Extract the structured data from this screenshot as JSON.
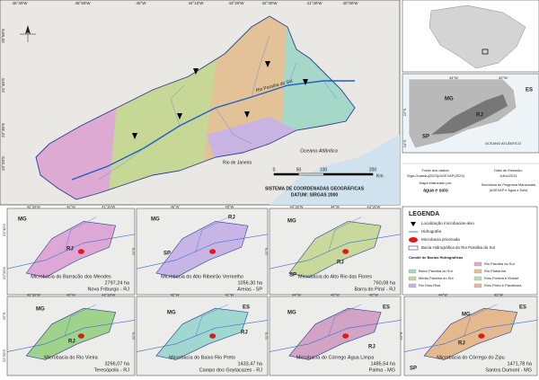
{
  "main_map": {
    "top_coords": [
      "46°40'W",
      "45°50'W",
      "45°W",
      "44°10'W",
      "43°20'W",
      "42°30'W",
      "41°40'W",
      "40°50'W"
    ],
    "left_coords": [
      "20°50'S",
      "21°40'S",
      "22°30'S",
      "23°20'S"
    ],
    "ocean": "Oceano Atlântico",
    "city": "Rio de Janeiro",
    "river": "Rio Paraíba do Sul",
    "scale": [
      0,
      50,
      100,
      200
    ],
    "scale_unit": "Km",
    "crs": "SISTEMA DE COORDENADAS GEOGRÁFICAS",
    "datum": "DATUM: SIRGAS 2000"
  },
  "credits": {
    "source": "Fonte dos dados:",
    "source_detail": "Siga-Guandu(2023)/AGEVAP(2023)",
    "author": "Mapa elaborado por:",
    "author_org": "água e solo",
    "date_label": "Data de Emissão:",
    "date": "Julho/2021",
    "program": "Secretaria do Programa Mananciais",
    "program_detail": "(AGEVAP e Água e Solo)"
  },
  "inset": {
    "states": [
      "MG",
      "ES",
      "RJ",
      "SP"
    ],
    "ocean": "OCEANO ATLÂNTICO",
    "x_coords": [
      "44°W",
      "42°W"
    ],
    "y_coords": [
      "22°S",
      "24°S"
    ]
  },
  "panels": [
    {
      "title": "Microbacia do Barracão dos Mendes",
      "area": "2797,24 ha",
      "place": "Nova Friburgo - RJ",
      "labels": [
        "MG",
        "RJ"
      ],
      "x_coords": [
        "42°30'W",
        "42°W",
        "41°30'W"
      ],
      "y_coords": [
        "21°40'S",
        "22°20'S"
      ]
    },
    {
      "title": "Microbacia do Alto Ribeirão Vermelho",
      "area": "1056,30 ha",
      "place": "Areias - SP",
      "labels": [
        "MG",
        "RJ",
        "SP"
      ],
      "x_coords": [
        "46°W",
        "45°W"
      ],
      "y_coords": [
        "22°S"
      ]
    },
    {
      "title": "Microbacia do Alto Rio das Flores",
      "area": "760,08 ha",
      "place": "Barra do Piraí - RJ",
      "labels": [
        "MG",
        "RJ",
        "SP"
      ],
      "x_coords": [
        "44°30'W",
        "44°W",
        "43°30'W"
      ],
      "y_coords": [
        "22°S"
      ]
    },
    {
      "title": "Microbacia do Rio Vieira",
      "area": "3266,07 ha",
      "place": "Teresópolis - RJ",
      "labels": [
        "MG",
        "RJ"
      ],
      "x_coords": [
        "43°30'W",
        "43°W",
        "42°30'W"
      ],
      "y_coords": [
        "22°S",
        "22°20'S"
      ]
    },
    {
      "title": "Microbacia do Baixo Rio Preto",
      "area": "1433,47 ha",
      "place": "Campo dos Goytacazes - RJ",
      "labels": [
        "MG",
        "ES",
        "RJ"
      ],
      "x_coords": [
        "42°W",
        "41°W"
      ],
      "y_coords": [
        "21°S"
      ]
    },
    {
      "title": "Microbacia do Córrego Água Limpa",
      "area": "1485,54 ha",
      "place": "Palma - MG",
      "labels": [
        "MG",
        "ES",
        "RJ"
      ],
      "x_coords": [
        "44°W",
        "43°W",
        "42°W"
      ],
      "y_coords": [
        "21°S"
      ]
    },
    {
      "title": "Microbacia do Córrego do Zipu",
      "area": "1471,78 ha",
      "place": "Santos Dumont - MG",
      "labels": [
        "MG",
        "RJ",
        "SP",
        "ES"
      ],
      "x_coords": [
        "44°W",
        "43°W"
      ],
      "y_coords": [
        "21°S"
      ]
    }
  ],
  "legend": {
    "title": "LEGENDA",
    "items": [
      "Localização microbacias-alvo",
      "Hidrografia",
      "Microbacia priorizada",
      "Bacia Hidrográfica do Rio Paraíba do Sul"
    ],
    "committees_title": "Comitê de Bacias Hidrográficas",
    "committees": [
      "Baixo Paraíba do Sul",
      "Médio Paraíba do Sul",
      "Rio Dois Rios",
      "Rio Paraíba do Sul",
      "Rio Piabanha",
      "Rios Pomba e Muriaé",
      "Rios Preto e Paraibuna"
    ]
  }
}
